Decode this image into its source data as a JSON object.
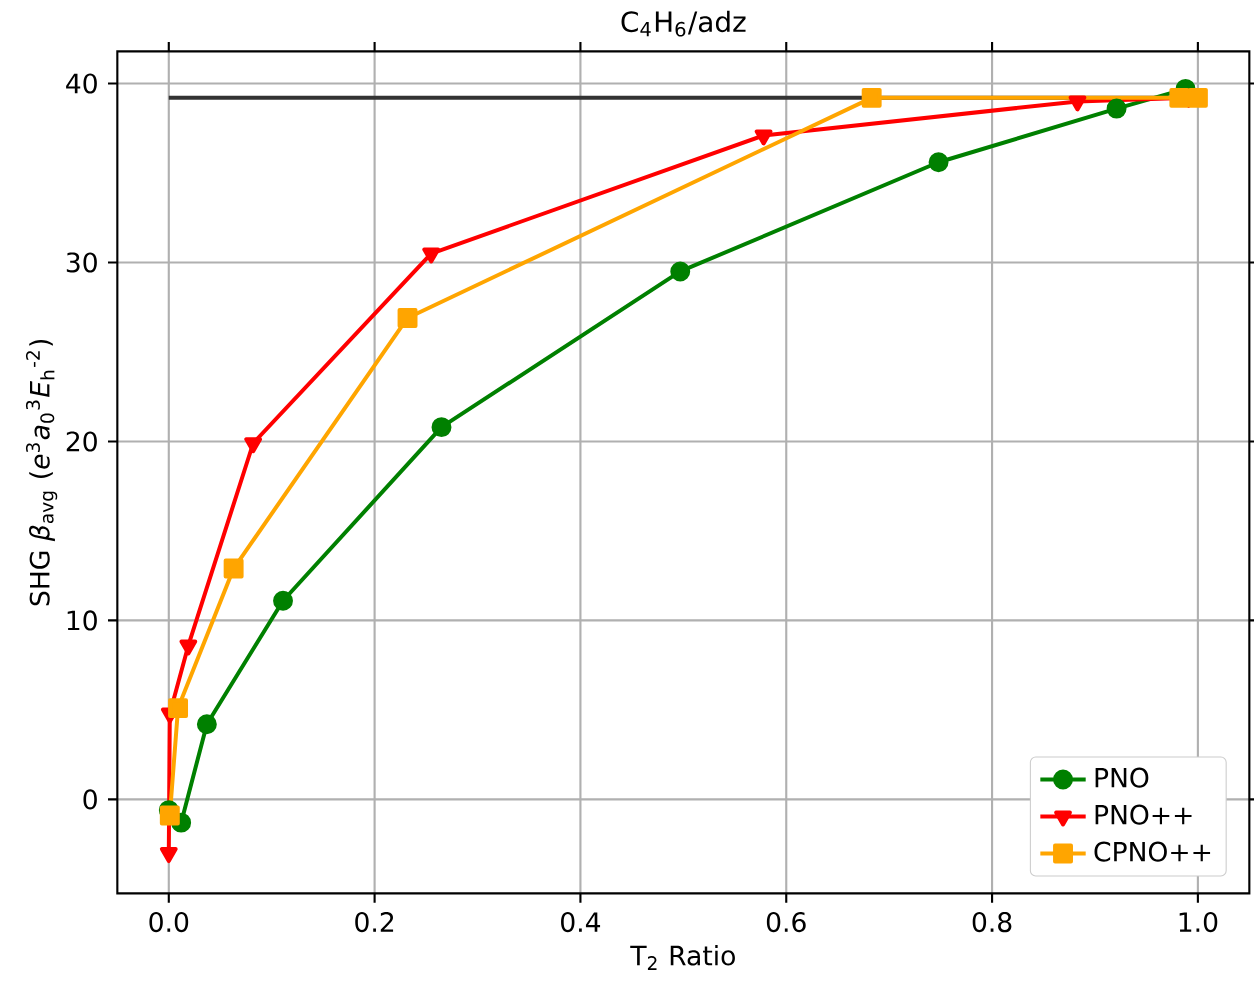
{
  "chart_data": {
    "type": "line",
    "title": "C$_{4}$H$_{6}$/adz",
    "xlabel": "T$_{2}$ Ratio",
    "ylabel": "SHG *β*$_{avg}$ (*e*$^{3}$*a*$_{0}$$^{3}$*E*$_{h}$$^{-2}$)",
    "xlim": [
      -0.05,
      1.05
    ],
    "ylim": [
      -5.25,
      41.8
    ],
    "xticks": [
      {
        "value": 0,
        "label": "0.0"
      },
      {
        "value": 0.2,
        "label": "0.2"
      },
      {
        "value": 0.4,
        "label": "0.4"
      },
      {
        "value": 0.6,
        "label": "0.6"
      },
      {
        "value": 0.8,
        "label": "0.8"
      },
      {
        "value": 1,
        "label": "1.0"
      }
    ],
    "yticks": [
      0,
      10,
      20,
      30,
      40
    ],
    "grid": true,
    "legend": "bottom right",
    "series": [
      {
        "type": "line",
        "color": "#333333",
        "marker": "none",
        "x": [
          0,
          1
        ],
        "values": [
          39.2,
          39.2
        ]
      },
      {
        "name": "PNO",
        "color": "#008000",
        "marker": "circle",
        "x": [
          0,
          0.012,
          0.037,
          0.111,
          0.265,
          0.497,
          0.748,
          0.921,
          0.988
        ],
        "values": [
          -0.6,
          -1.3,
          4.2,
          11.1,
          20.8,
          29.5,
          35.6,
          38.6,
          39.7
        ]
      },
      {
        "name": "PNO++",
        "color": "#ff0000",
        "marker": "triangle",
        "x": [
          0,
          0.001,
          0.019,
          0.082,
          0.255,
          0.578,
          0.883,
          0.991
        ],
        "values": [
          -3.0,
          4.8,
          8.6,
          19.9,
          30.5,
          37.1,
          39.0,
          39.2
        ]
      },
      {
        "name": "CPNO++",
        "color": "#ffa500",
        "marker": "square",
        "x": [
          0.001,
          0.009,
          0.063,
          0.232,
          0.683,
          0.982,
          1.0
        ],
        "values": [
          -0.9,
          5.1,
          12.9,
          26.9,
          39.2,
          39.2,
          39.2
        ]
      }
    ]
  }
}
